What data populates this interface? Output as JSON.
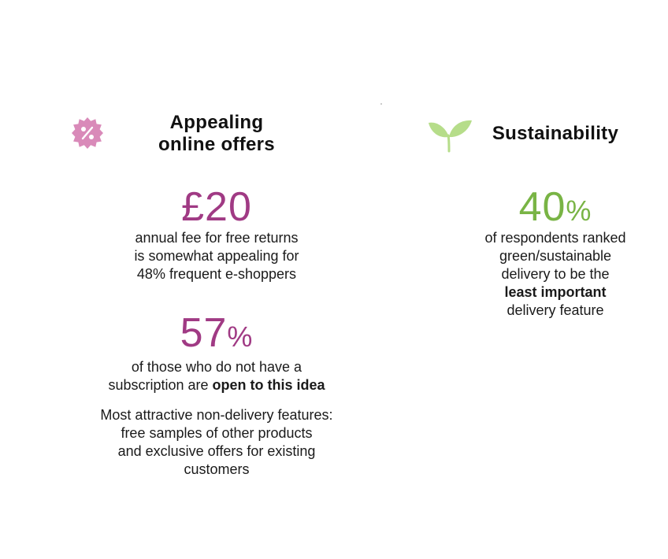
{
  "left": {
    "heading_line1": "Appealing",
    "heading_line2": "online offers",
    "icon": "discount-badge-icon",
    "stat1_value": "£20",
    "stat1_lines": [
      "annual fee for free returns",
      "is somewhat appealing for",
      "48% frequent e-shoppers"
    ],
    "stat2_number": "57",
    "stat2_percent": "%",
    "stat2_line1": "of those who do not have a",
    "stat2_line2_normal": "subscription are ",
    "stat2_line2_bold": "open to this idea",
    "features_lines": [
      "Most attractive non-delivery features:",
      "free samples of other products",
      "and exclusive offers for existing",
      "customers"
    ]
  },
  "right": {
    "heading": "Sustainability",
    "icon": "sprout-icon",
    "stat_number": "40",
    "stat_percent": "%",
    "lines": [
      "of respondents ranked",
      "green/sustainable",
      "delivery to be the"
    ],
    "bold_line": "least important",
    "last_line": "delivery feature"
  },
  "colors": {
    "purple": "#a03a84",
    "pink_icon": "#d98ab9",
    "green": "#79b445",
    "leaf_light": "#b6dd8a"
  }
}
